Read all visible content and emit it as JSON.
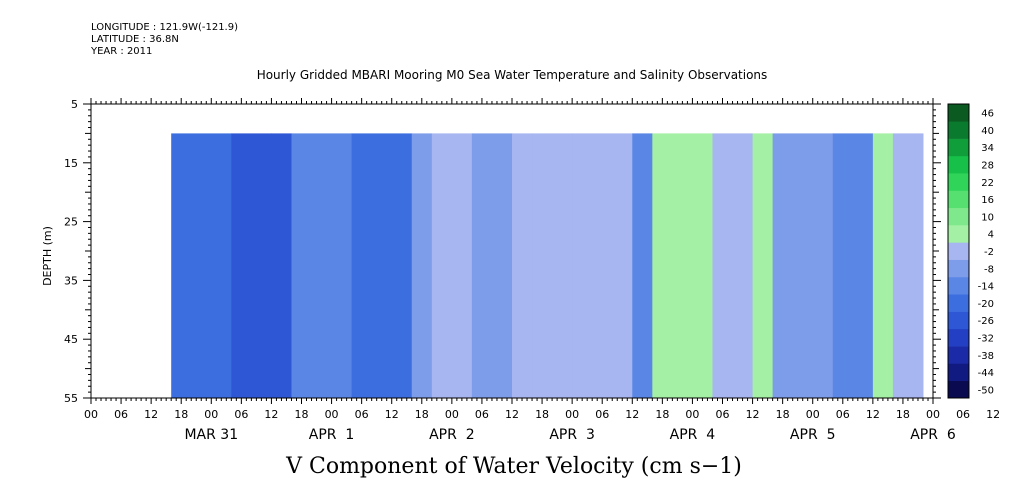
{
  "header": {
    "longitude": "LONGITUDE : 121.9W(-121.9)",
    "latitude": "LATITUDE : 36.8N",
    "year": "YEAR : 2011"
  },
  "chart_data": {
    "type": "heatmap",
    "title": "Hourly Gridded MBARI Mooring M0 Sea Water Temperature and Salinity Observations",
    "xlabel": "V Component of Water Velocity (cm s−1)",
    "ylabel": "DEPTH (m)",
    "ylim": [
      5,
      55
    ],
    "yticks": [
      5,
      15,
      25,
      35,
      45,
      55
    ],
    "y_inverted": true,
    "data_depth_range": [
      10,
      55
    ],
    "x_hour_range": [
      -12,
      156
    ],
    "x_data_start_hour": 4,
    "x_data_end_hour": 154,
    "x_hour_tick_labels": [
      "00",
      "06",
      "12",
      "18",
      "00",
      "06",
      "12",
      "18",
      "00",
      "06",
      "12",
      "18",
      "00",
      "06",
      "12",
      "18",
      "00",
      "06",
      "12",
      "18",
      "00",
      "06",
      "12",
      "18",
      "00",
      "06",
      "12",
      "18",
      "00",
      "06",
      "12",
      "18"
    ],
    "x_date_labels": [
      "MAR 31",
      "APR  1",
      "APR  2",
      "APR  3",
      "APR  4",
      "APR  5",
      "APR  6"
    ],
    "colorbar": {
      "levels": [
        -50,
        -44,
        -38,
        -32,
        -26,
        -20,
        -14,
        -8,
        -2,
        4,
        10,
        16,
        22,
        28,
        34,
        40,
        46
      ],
      "tick_labels": [
        "46",
        "40",
        "34",
        "28",
        "22",
        "16",
        "10",
        "4",
        "-2",
        "-8",
        "-14",
        "-20",
        "-26",
        "-32",
        "-38",
        "-44",
        "-50"
      ]
    },
    "vertical_profile": {
      "depth": [
        10,
        55
      ],
      "hours": [
        4,
        16,
        24,
        28,
        40,
        52,
        56,
        64,
        72,
        76,
        84,
        96,
        100,
        112,
        120,
        124,
        136,
        144,
        148,
        154
      ],
      "v": [
        -14,
        -20,
        -20,
        -8,
        -14,
        -6,
        4,
        -2,
        4,
        4,
        2,
        -8,
        8,
        0,
        10,
        -2,
        -8,
        10,
        4,
        4
      ]
    }
  }
}
